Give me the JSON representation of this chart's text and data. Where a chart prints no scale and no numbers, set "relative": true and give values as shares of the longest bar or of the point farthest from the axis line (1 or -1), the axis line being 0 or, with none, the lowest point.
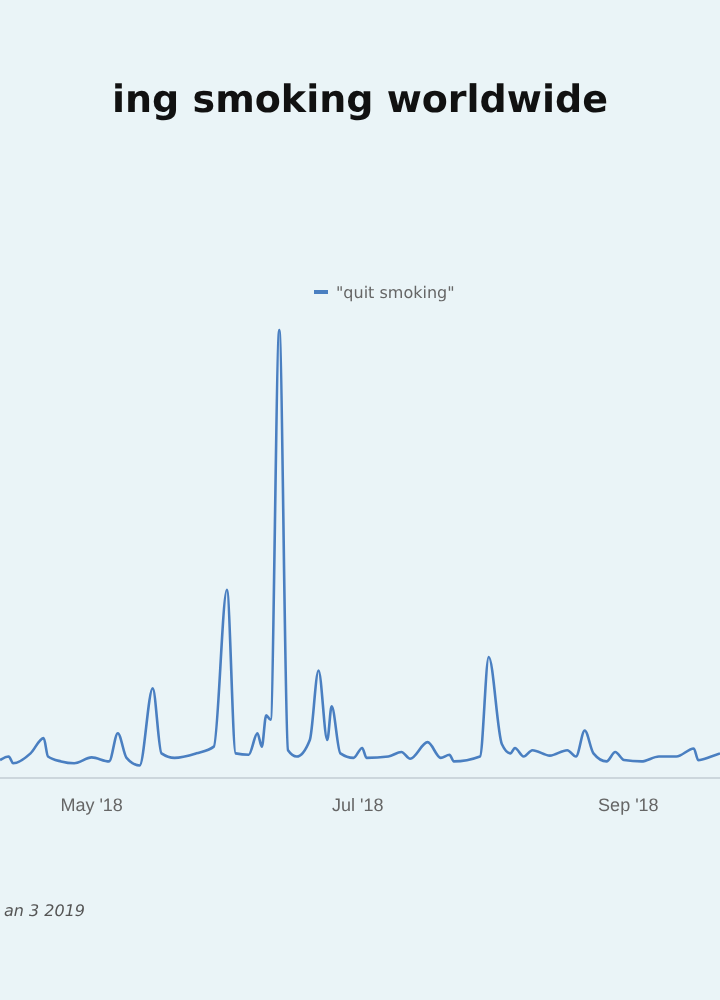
{
  "chart_data": {
    "type": "line",
    "title": "ing smoking worldwide",
    "relative": true,
    "legend": "top",
    "grid": false,
    "marker": "none",
    "line_style": "solid",
    "annotations": [
      "an 3 2019"
    ],
    "xlim": [
      "2018-04-10",
      "2018-09-22"
    ],
    "xticks": [
      {
        "value": "2018-05-01",
        "label": "May '18"
      },
      {
        "value": "2018-07-01",
        "label": "Jul '18"
      },
      {
        "value": "2018-09-01",
        "label": "Sep '18"
      }
    ],
    "x": [
      "2018-04-10",
      "2018-04-12",
      "2018-04-13",
      "2018-04-17",
      "2018-04-20",
      "2018-04-21",
      "2018-04-24",
      "2018-04-27",
      "2018-05-01",
      "2018-05-05",
      "2018-05-07",
      "2018-05-09",
      "2018-05-12",
      "2018-05-15",
      "2018-05-17",
      "2018-05-20",
      "2018-05-25",
      "2018-05-29",
      "2018-06-01",
      "2018-06-03",
      "2018-06-06",
      "2018-06-08",
      "2018-06-09",
      "2018-06-10",
      "2018-06-11",
      "2018-06-13",
      "2018-06-15",
      "2018-06-17",
      "2018-06-20",
      "2018-06-22",
      "2018-06-24",
      "2018-06-25",
      "2018-06-27",
      "2018-06-30",
      "2018-07-02",
      "2018-07-03",
      "2018-07-08",
      "2018-07-11",
      "2018-07-13",
      "2018-07-17",
      "2018-07-20",
      "2018-07-22",
      "2018-07-23",
      "2018-07-29",
      "2018-07-31",
      "2018-08-03",
      "2018-08-05",
      "2018-08-06",
      "2018-08-08",
      "2018-08-10",
      "2018-08-14",
      "2018-08-18",
      "2018-08-20",
      "2018-08-22",
      "2018-08-24",
      "2018-08-27",
      "2018-08-29",
      "2018-08-31",
      "2018-09-04",
      "2018-09-08",
      "2018-09-12",
      "2018-09-16",
      "2018-09-17",
      "2018-09-20",
      "2018-09-22"
    ],
    "series": [
      {
        "name": "\"quit smoking\"",
        "color": "#4a7fc1",
        "values": [
          0.04,
          0.048,
          0.033,
          0.055,
          0.089,
          0.048,
          0.037,
          0.033,
          0.046,
          0.037,
          0.1,
          0.045,
          0.028,
          0.2,
          0.055,
          0.045,
          0.055,
          0.07,
          0.42,
          0.055,
          0.052,
          0.1,
          0.07,
          0.14,
          0.13,
          1.0,
          0.062,
          0.048,
          0.085,
          0.24,
          0.085,
          0.16,
          0.055,
          0.045,
          0.067,
          0.045,
          0.048,
          0.058,
          0.043,
          0.08,
          0.045,
          0.052,
          0.037,
          0.048,
          0.27,
          0.076,
          0.055,
          0.067,
          0.048,
          0.062,
          0.05,
          0.062,
          0.048,
          0.106,
          0.055,
          0.037,
          0.058,
          0.04,
          0.037,
          0.048,
          0.048,
          0.066,
          0.04,
          0.048,
          0.055
        ]
      }
    ]
  }
}
